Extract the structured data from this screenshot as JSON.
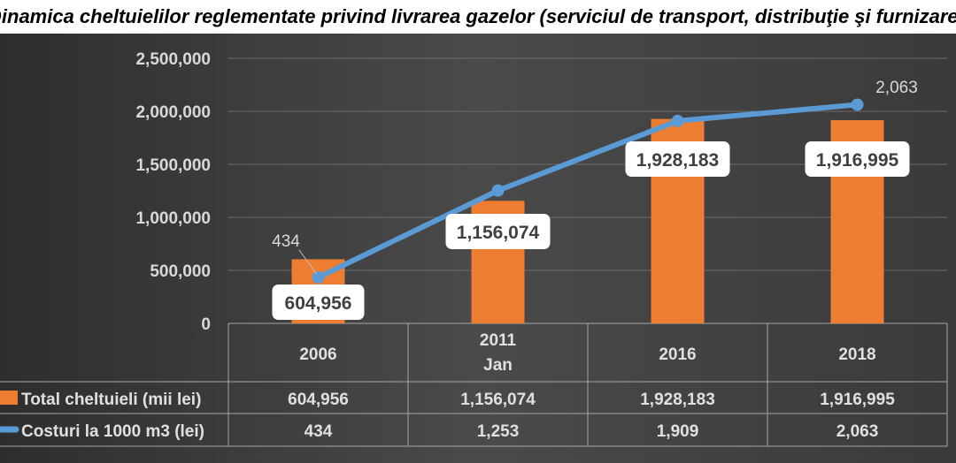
{
  "chart_data": {
    "type": "bar",
    "title": "Dinamica cheltuielilor reglementate privind livrarea gazelor (serviciul de transport, distribuţie şi furnizare)",
    "categories": [
      [
        "2006"
      ],
      [
        "2011",
        "Jan"
      ],
      [
        "2016"
      ],
      [
        "2018"
      ]
    ],
    "ylim": [
      0,
      2500000
    ],
    "yticks": [
      "0",
      "500,000",
      "1,000,000",
      "1,500,000",
      "2,000,000",
      "2,500,000"
    ],
    "ytick_values": [
      0,
      500000,
      1000000,
      1500000,
      2000000,
      2500000
    ],
    "grid": true,
    "series": [
      {
        "name": "Total cheltuieli (mii lei)",
        "kind": "bar",
        "color": "#ed7d31",
        "values": [
          604956,
          1156074,
          1928183,
          1916995
        ],
        "labels": [
          "604,956",
          "1,156,074",
          "1,928,183",
          "1,916,995"
        ]
      },
      {
        "name": "Costuri la 1000 m3 (lei)",
        "kind": "line",
        "axis": "secondary",
        "color": "#5b9bd5",
        "ylim": [
          0,
          2500
        ],
        "values": [
          434,
          1253,
          1909,
          2063
        ],
        "labels": [
          "434",
          "1,253",
          "1,909",
          "2,063"
        ],
        "shown_point_labels": [
          "434",
          "2,063"
        ]
      }
    ],
    "legend": "data-table"
  }
}
